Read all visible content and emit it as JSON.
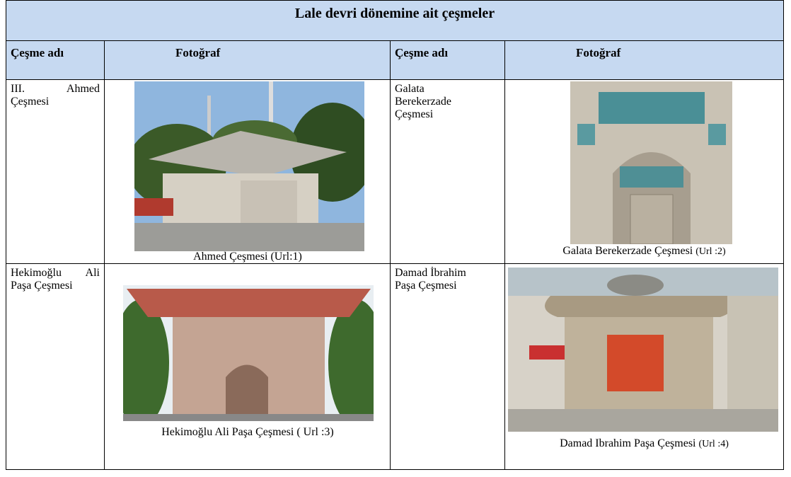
{
  "title": "Lale devri dönemine ait çeşmeler",
  "table": {
    "headers": [
      "Çeşme adı",
      "Fotoğraf",
      "Çeşme adı",
      "Fotoğraf"
    ],
    "rows": [
      [
        {
          "name": "III. Ahmed Çeşmesi",
          "caption": "Ahmed Çeşmesi",
          "url": "(Url:1)"
        },
        {
          "name": "Galata Berekerzade Çeşmesi",
          "caption": "Galata Berekerzade Çeşmesi",
          "url": "(Url :2)"
        }
      ],
      [
        {
          "name": "Hekimoğlu Ali Paşa Çeşmesi",
          "caption": "Hekimoğlu Ali Paşa Çeşmesi",
          "url": "( Url :3)"
        },
        {
          "name": "Damad İbrahim Paşa Çeşmesi",
          "caption": "Damad Ibrahim Paşa Çeşmesi",
          "url": "(Url :4)"
        }
      ]
    ]
  }
}
